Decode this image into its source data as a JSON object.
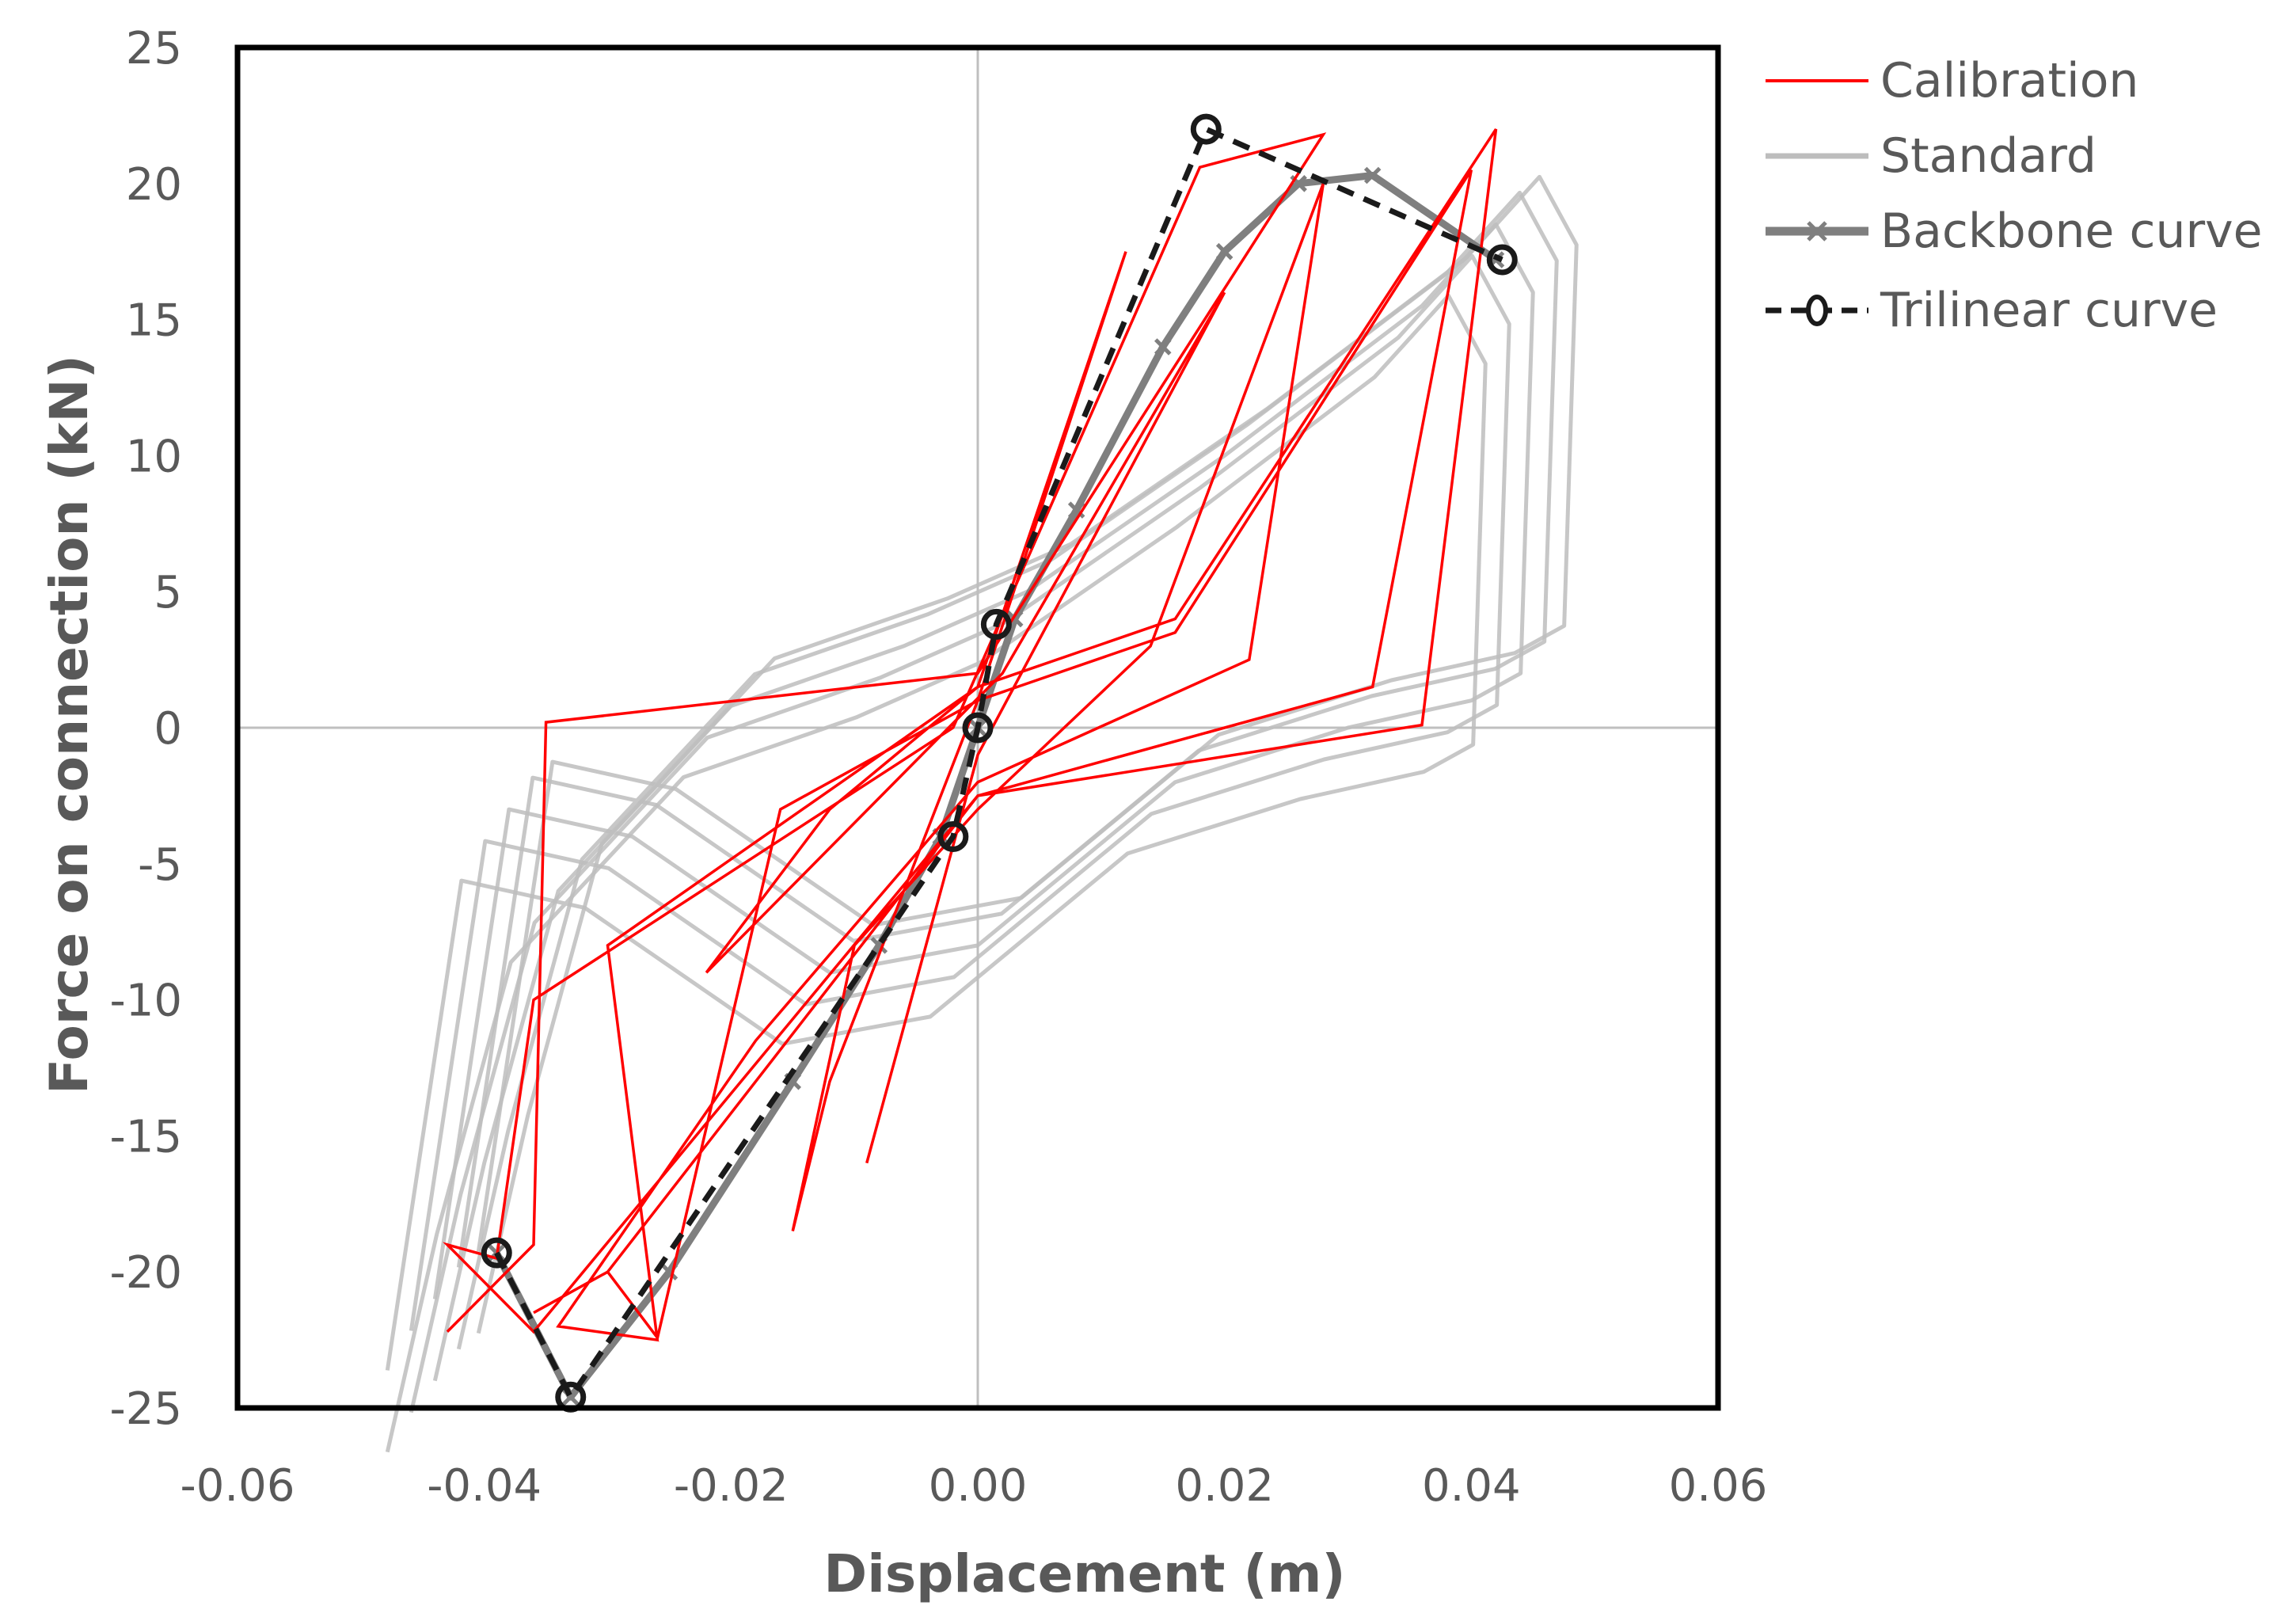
{
  "chart_data": {
    "type": "line",
    "xlabel": "Displacement (m)",
    "ylabel": "Force on connection (kN)",
    "xlim": [
      -0.06,
      0.06
    ],
    "ylim": [
      -25,
      25
    ],
    "xticks": [
      "-0.06",
      "-0.04",
      "-0.02",
      "0.00",
      "0.02",
      "0.04",
      "0.06"
    ],
    "xtick_values": [
      -0.06,
      -0.04,
      -0.02,
      0.0,
      0.02,
      0.04,
      0.06
    ],
    "yticks": [
      "25",
      "20",
      "15",
      "10",
      "5",
      "0",
      "-5",
      "-10",
      "-15",
      "-20",
      "-25"
    ],
    "ytick_values": [
      25,
      20,
      15,
      10,
      5,
      0,
      -5,
      -10,
      -15,
      -20,
      -25
    ],
    "legend": [
      {
        "name": "Calibration",
        "color": "#ff0000",
        "style": "solid-thin"
      },
      {
        "name": "Standard",
        "color": "#bdbdbd",
        "style": "solid"
      },
      {
        "name": "Backbone curve",
        "color": "#7f7f7f",
        "style": "solid-thick-marker"
      },
      {
        "name": "Trilinear curve",
        "color": "#1a1a1a",
        "style": "dashed-circle-marker"
      }
    ],
    "series": [
      {
        "name": "Trilinear curve",
        "color": "#1a1a1a",
        "x": [
          -0.039,
          -0.033,
          -0.002,
          0.0,
          0.0015,
          0.0185,
          0.0425
        ],
        "y": [
          -19.3,
          -24.6,
          -4.0,
          0.0,
          3.8,
          22.0,
          17.2
        ]
      },
      {
        "name": "Backbone curve",
        "color": "#7f7f7f",
        "x": [
          -0.039,
          -0.033,
          -0.025,
          -0.015,
          -0.008,
          -0.003,
          0.0,
          0.003,
          0.008,
          0.015,
          0.02,
          0.026,
          0.032,
          0.042
        ],
        "y": [
          -19.3,
          -24.6,
          -20.0,
          -13.0,
          -8.0,
          -4.0,
          0.0,
          4.0,
          8.0,
          14.0,
          17.5,
          20.0,
          20.3,
          17.2
        ]
      },
      {
        "name": "Standard",
        "color": "#bdbdbd",
        "x": [
          -0.044,
          -0.04,
          -0.034,
          -0.02,
          -0.006,
          0.004,
          0.02,
          0.036,
          0.042,
          0.045,
          0.044,
          0.04,
          0.03,
          0.016,
          0.0,
          -0.012,
          -0.028,
          -0.038,
          -0.044
        ],
        "y": [
          -24.0,
          -16.0,
          -6.0,
          0.8,
          3.0,
          5.0,
          10.0,
          15.5,
          18.5,
          16.0,
          2.0,
          1.0,
          0.0,
          -2.0,
          -8.0,
          -9.0,
          -4.0,
          -3.0,
          -21.0
        ]
      },
      {
        "name": "Calibration",
        "color": "#ff0000",
        "x": [
          -0.043,
          -0.036,
          -0.035,
          0.0,
          0.028,
          0.018,
          -0.002,
          -0.036,
          -0.039,
          -0.043,
          -0.036,
          0.0,
          0.036,
          0.042,
          0.016,
          0.0,
          -0.03,
          -0.026,
          -0.03,
          -0.036,
          -0.03,
          0.0,
          0.032,
          0.04,
          0.016,
          0.0,
          -0.016,
          -0.026,
          -0.034,
          -0.018,
          0.0,
          0.022,
          0.028,
          0.014,
          0.0,
          -0.01,
          -0.015,
          -0.012,
          0.0,
          0.012,
          0.0,
          -0.012,
          -0.022,
          0.002,
          0.02,
          0.0,
          -0.009
        ],
        "y": [
          -22.2,
          -19.0,
          0.2,
          2.0,
          21.8,
          20.6,
          0.0,
          -10.0,
          -19.5,
          -19.0,
          -22.2,
          -2.5,
          0.1,
          22.0,
          4.0,
          1.5,
          -8.0,
          -22.4,
          -20.0,
          -21.5,
          -20.0,
          -2.5,
          1.5,
          20.5,
          3.5,
          1.0,
          -3.0,
          -22.5,
          -22.0,
          -11.5,
          -2.0,
          2.5,
          20.0,
          3.0,
          -3.0,
          -8.0,
          -18.5,
          -13.0,
          1.0,
          17.5,
          1.5,
          -3.0,
          -9.0,
          2.0,
          16.0,
          -1.0,
          -16.0
        ]
      }
    ]
  }
}
